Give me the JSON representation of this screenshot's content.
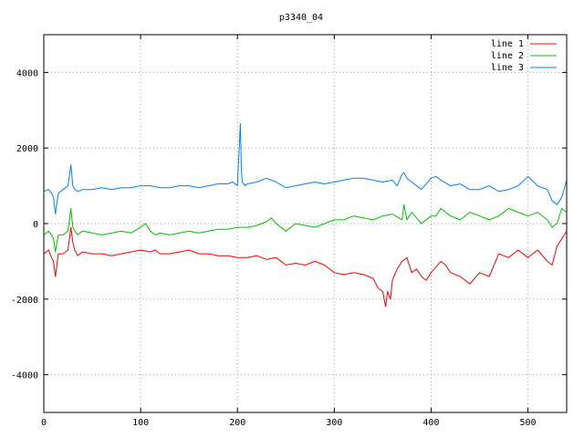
{
  "chart_data": {
    "type": "line",
    "title": "p3340_04",
    "xlabel": "",
    "ylabel": "",
    "xlim": [
      0,
      540
    ],
    "ylim": [
      -5000,
      5000
    ],
    "x_ticks": [
      0,
      100,
      200,
      300,
      400,
      500
    ],
    "y_ticks": [
      -4000,
      -2000,
      0,
      2000,
      4000
    ],
    "grid": true,
    "legend_position": "top-right",
    "series": [
      {
        "name": "line 1",
        "color": "#ff0000",
        "x": [
          0,
          5,
          8,
          10,
          12,
          15,
          20,
          25,
          28,
          30,
          32,
          35,
          40,
          50,
          60,
          70,
          80,
          90,
          100,
          110,
          115,
          120,
          130,
          140,
          150,
          160,
          170,
          180,
          190,
          200,
          210,
          220,
          230,
          240,
          250,
          260,
          270,
          280,
          290,
          300,
          310,
          320,
          330,
          340,
          345,
          350,
          353,
          355,
          358,
          360,
          365,
          370,
          375,
          380,
          385,
          390,
          395,
          400,
          405,
          410,
          415,
          420,
          430,
          440,
          450,
          460,
          470,
          480,
          490,
          500,
          510,
          520,
          525,
          530,
          535,
          540
        ],
        "y": [
          -800,
          -700,
          -900,
          -1000,
          -1400,
          -800,
          -800,
          -700,
          -100,
          -500,
          -700,
          -850,
          -750,
          -800,
          -800,
          -850,
          -800,
          -750,
          -700,
          -750,
          -700,
          -800,
          -800,
          -750,
          -700,
          -800,
          -800,
          -850,
          -850,
          -900,
          -900,
          -850,
          -950,
          -900,
          -1100,
          -1050,
          -1100,
          -1000,
          -1100,
          -1300,
          -1350,
          -1300,
          -1350,
          -1450,
          -1700,
          -1800,
          -2200,
          -1800,
          -2000,
          -1500,
          -1200,
          -1000,
          -900,
          -1300,
          -1200,
          -1400,
          -1500,
          -1300,
          -1150,
          -1000,
          -1100,
          -1300,
          -1400,
          -1600,
          -1300,
          -1400,
          -800,
          -900,
          -700,
          -900,
          -700,
          -1000,
          -1100,
          -600,
          -400,
          -200
        ]
      },
      {
        "name": "line 2",
        "color": "#00c000",
        "x": [
          0,
          5,
          8,
          10,
          12,
          15,
          20,
          25,
          28,
          30,
          32,
          35,
          40,
          50,
          60,
          70,
          80,
          90,
          100,
          105,
          110,
          115,
          120,
          130,
          140,
          150,
          160,
          170,
          180,
          190,
          200,
          210,
          220,
          230,
          235,
          240,
          250,
          260,
          270,
          280,
          290,
          300,
          310,
          320,
          330,
          340,
          350,
          360,
          370,
          372,
          375,
          380,
          390,
          400,
          405,
          410,
          420,
          430,
          440,
          450,
          460,
          470,
          480,
          490,
          500,
          510,
          520,
          525,
          530,
          535,
          540
        ],
        "y": [
          -300,
          -200,
          -300,
          -400,
          -750,
          -300,
          -300,
          -200,
          400,
          -100,
          -200,
          -300,
          -200,
          -250,
          -300,
          -250,
          -200,
          -250,
          -100,
          0,
          -200,
          -300,
          -250,
          -300,
          -250,
          -200,
          -250,
          -200,
          -150,
          -150,
          -100,
          -100,
          -50,
          50,
          150,
          0,
          -200,
          0,
          -50,
          -100,
          0,
          100,
          100,
          200,
          150,
          100,
          200,
          250,
          100,
          500,
          100,
          300,
          0,
          200,
          200,
          400,
          200,
          100,
          300,
          200,
          100,
          200,
          400,
          300,
          200,
          300,
          100,
          -100,
          0,
          400,
          300
        ]
      },
      {
        "name": "line 3",
        "color": "#0080ff",
        "x": [
          0,
          5,
          8,
          10,
          12,
          15,
          20,
          25,
          28,
          30,
          32,
          35,
          40,
          50,
          60,
          70,
          80,
          90,
          100,
          110,
          120,
          130,
          140,
          150,
          160,
          170,
          180,
          190,
          195,
          200,
          202,
          203,
          204,
          205,
          208,
          210,
          220,
          230,
          240,
          250,
          260,
          270,
          280,
          290,
          300,
          310,
          320,
          330,
          340,
          350,
          360,
          365,
          370,
          372,
          375,
          380,
          390,
          400,
          405,
          410,
          420,
          430,
          440,
          450,
          460,
          470,
          480,
          490,
          500,
          510,
          520,
          525,
          530,
          535,
          540
        ],
        "y": [
          850,
          900,
          800,
          700,
          250,
          800,
          900,
          1000,
          1550,
          1000,
          900,
          850,
          900,
          900,
          950,
          900,
          950,
          950,
          1000,
          1000,
          950,
          950,
          1000,
          1000,
          950,
          1000,
          1050,
          1050,
          1100,
          1000,
          2100,
          2650,
          1400,
          1100,
          1000,
          1050,
          1100,
          1200,
          1100,
          950,
          1000,
          1050,
          1100,
          1050,
          1100,
          1150,
          1200,
          1200,
          1150,
          1100,
          1150,
          1000,
          1300,
          1350,
          1200,
          1100,
          900,
          1200,
          1250,
          1150,
          1000,
          1050,
          900,
          900,
          1000,
          850,
          900,
          1000,
          1250,
          1000,
          900,
          600,
          500,
          700,
          1150
        ]
      }
    ]
  }
}
